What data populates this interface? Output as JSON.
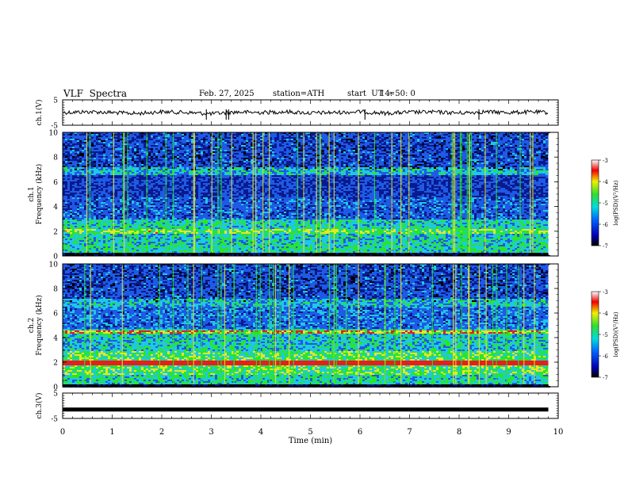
{
  "header": {
    "title": "VLF  Spectra",
    "date": "Feb. 27, 2025",
    "station": "station=ATH",
    "start_label": "start  UT  =",
    "start_time": "14: 50: 0"
  },
  "chart_data": [
    {
      "type": "line",
      "ylabel": "ch.1(V)",
      "ylim": [
        -5,
        5
      ],
      "yticks": [
        "5",
        "-5"
      ],
      "x": [
        0,
        0.5,
        1,
        1.5,
        2,
        2.5,
        3,
        3.5,
        4,
        4.5,
        5,
        5.5,
        6,
        6.5,
        7,
        7.5,
        8,
        8.5,
        9,
        9.5,
        9.8
      ],
      "y": [
        0,
        0.3,
        0,
        -0.4,
        0.3,
        0,
        -0.5,
        0.2,
        0,
        0.3,
        -0.2,
        0,
        0.3,
        -0.3,
        0.1,
        0.2,
        -0.2,
        0.3,
        0,
        0.2,
        0
      ]
    },
    {
      "type": "heatmap",
      "ylabel": "ch.1\nFrequency  (kHz)",
      "ylim": [
        0,
        10
      ],
      "yticks": [
        "0",
        "2",
        "4",
        "6",
        "8",
        "10"
      ],
      "colorbar": {
        "label": "log(PSD)(V²/Hz)",
        "range": [
          -7,
          -3
        ],
        "ticks": [
          "-3",
          "-4",
          "-5",
          "-6",
          "-7"
        ]
      }
    },
    {
      "type": "heatmap",
      "ylabel": "ch.2\nFrequency  (kHz)",
      "ylim": [
        0,
        10
      ],
      "yticks": [
        "0",
        "2",
        "4",
        "6",
        "8",
        "10"
      ],
      "colorbar": {
        "label": "log(PSD)(V²/Hz)",
        "range": [
          -7,
          -3
        ],
        "ticks": [
          "-3",
          "-4",
          "-5",
          "-6",
          "-7"
        ]
      }
    },
    {
      "type": "line",
      "ylabel": "ch.3(V)",
      "ylim": [
        -5,
        5
      ],
      "yticks": [
        "5",
        "-5"
      ],
      "x": [
        0,
        9.8
      ],
      "y": [
        -1.5,
        -1.5
      ]
    }
  ],
  "x_axis": {
    "label": "Time  (min)",
    "range": [
      0,
      10
    ],
    "ticks": [
      "0",
      "1",
      "2",
      "3",
      "4",
      "5",
      "6",
      "7",
      "8",
      "9",
      "10"
    ]
  },
  "colors": {
    "bg_dark": "#0a1a8c",
    "bg_mid": "#1e5ae6",
    "cyan": "#1ec8e6",
    "green": "#28e628",
    "yellow": "#e6e628",
    "red": "#e61e1e"
  }
}
